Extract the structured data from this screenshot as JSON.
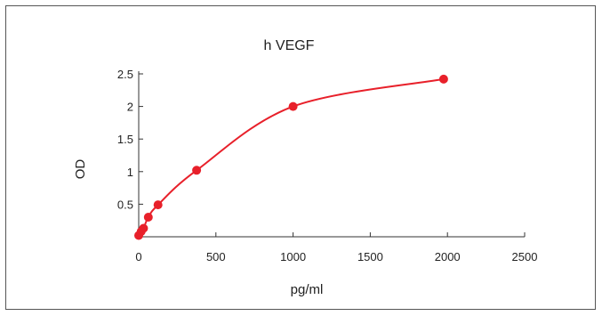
{
  "chart_data": {
    "type": "scatter",
    "title": "h   VEGF",
    "xlabel": "pg/ml",
    "ylabel": "OD",
    "xlim": [
      0,
      2500
    ],
    "ylim": [
      0,
      2.5
    ],
    "x_ticks": [
      0,
      500,
      1000,
      1500,
      2000,
      2500
    ],
    "x_tick_labels": [
      "0",
      "500",
      "1000",
      "1500",
      "2000",
      "2500"
    ],
    "y_ticks": [
      0.5,
      1,
      1.5,
      2,
      2.5
    ],
    "y_tick_labels": [
      "0.5",
      "1",
      "1.5",
      "2",
      "2.5"
    ],
    "grid": false,
    "legend": "none",
    "color": "#e8202a",
    "series": [
      {
        "x": [
          0,
          15.6,
          31.2,
          62.5,
          125,
          375,
          1000,
          1975
        ],
        "y": [
          0.02,
          0.08,
          0.13,
          0.3,
          0.49,
          1.02,
          2.0,
          2.42
        ],
        "fit": "smooth-curve"
      }
    ]
  }
}
